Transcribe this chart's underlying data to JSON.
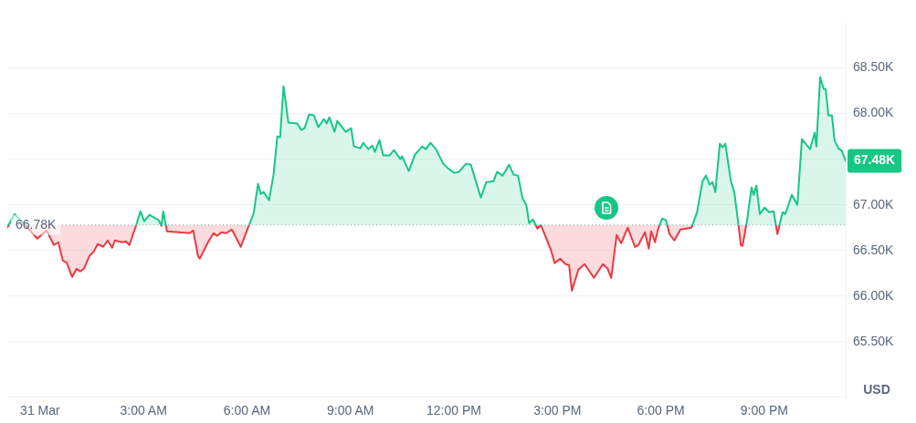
{
  "chart_data": {
    "type": "area",
    "ylabel": "USD",
    "x": [
      -0.95,
      -0.74,
      -0.53,
      -0.08,
      0.19,
      0.4,
      0.53,
      0.66,
      0.77,
      0.93,
      1.06,
      1.16,
      1.27,
      1.43,
      1.56,
      1.67,
      1.83,
      1.96,
      2.09,
      2.17,
      2.38,
      2.49,
      2.59,
      2.78,
      2.91,
      3.02,
      3.17,
      3.44,
      3.52,
      3.57,
      3.68,
      4.34,
      4.44,
      4.58,
      4.63,
      4.87,
      5.03,
      5.13,
      5.26,
      5.4,
      5.56,
      5.82,
      6.03,
      6.19,
      6.32,
      6.4,
      6.48,
      6.64,
      6.77,
      6.88,
      6.96,
      7.06,
      7.2,
      7.46,
      7.57,
      7.67,
      7.8,
      7.94,
      8.07,
      8.23,
      8.31,
      8.39,
      8.54,
      8.62,
      8.86,
      9.02,
      9.1,
      9.29,
      9.37,
      9.52,
      9.63,
      9.71,
      9.84,
      9.95,
      10.13,
      10.26,
      10.45,
      10.5,
      10.69,
      10.87,
      11.08,
      11.19,
      11.32,
      11.48,
      11.69,
      11.83,
      12.01,
      12.14,
      12.35,
      12.49,
      12.62,
      12.78,
      12.94,
      13.15,
      13.25,
      13.41,
      13.6,
      13.73,
      13.86,
      13.99,
      14.1,
      14.18,
      14.29,
      14.42,
      14.52,
      14.68,
      14.81,
      14.92,
      15.08,
      15.24,
      15.34,
      15.42,
      15.61,
      15.79,
      16.06,
      16.32,
      16.46,
      16.56,
      16.72,
      16.85,
      17.04,
      17.25,
      17.35,
      17.54,
      17.65,
      17.72,
      17.83,
      17.91,
      18.04,
      18.15,
      18.25,
      18.39,
      18.57,
      18.89,
      19.05,
      19.21,
      19.31,
      19.42,
      19.5,
      19.58,
      19.71,
      19.79,
      19.87,
      20.03,
      20.13,
      20.26,
      20.32,
      20.37,
      20.5,
      20.63,
      20.69,
      20.77,
      20.87,
      21.01,
      21.14,
      21.27,
      21.38,
      21.53,
      21.61,
      21.8,
      21.96,
      22.09,
      22.33,
      22.46,
      22.51,
      22.62,
      22.72,
      22.78,
      22.86,
      22.96,
      23.04,
      23.15,
      23.25,
      23.36
    ],
    "series": [
      {
        "values": [
          66.75,
          66.9,
          66.82,
          66.63,
          66.72,
          66.56,
          66.59,
          66.39,
          66.37,
          66.21,
          66.3,
          66.27,
          66.3,
          66.44,
          66.49,
          66.57,
          66.54,
          66.61,
          66.53,
          66.61,
          66.59,
          66.6,
          66.56,
          66.77,
          66.93,
          66.82,
          66.89,
          66.83,
          66.77,
          66.93,
          66.71,
          66.69,
          66.72,
          66.44,
          66.41,
          66.59,
          66.69,
          66.66,
          66.7,
          66.69,
          66.73,
          66.54,
          66.75,
          66.9,
          67.23,
          67.12,
          67.14,
          67.05,
          67.33,
          67.75,
          67.74,
          68.3,
          67.9,
          67.89,
          67.82,
          67.84,
          67.99,
          67.98,
          67.85,
          67.94,
          67.89,
          67.96,
          67.8,
          67.92,
          67.8,
          67.84,
          67.64,
          67.62,
          67.68,
          67.61,
          67.65,
          67.58,
          67.71,
          67.54,
          67.54,
          67.6,
          67.5,
          67.53,
          67.37,
          67.55,
          67.64,
          67.61,
          67.68,
          67.61,
          67.45,
          67.4,
          67.35,
          67.36,
          67.45,
          67.44,
          67.28,
          67.08,
          67.25,
          67.26,
          67.36,
          67.32,
          67.44,
          67.33,
          67.32,
          67.07,
          67.0,
          66.8,
          66.84,
          66.74,
          66.78,
          66.63,
          66.51,
          66.36,
          66.41,
          66.35,
          66.34,
          66.06,
          66.29,
          66.35,
          66.2,
          66.35,
          66.3,
          66.2,
          66.67,
          66.58,
          66.75,
          66.54,
          66.56,
          66.7,
          66.52,
          66.71,
          66.59,
          66.72,
          66.85,
          66.83,
          66.68,
          66.61,
          66.73,
          66.75,
          66.92,
          67.26,
          67.32,
          67.22,
          67.25,
          67.14,
          67.67,
          67.63,
          67.67,
          67.26,
          67.14,
          66.75,
          66.56,
          66.55,
          66.83,
          67.19,
          67.11,
          67.21,
          66.9,
          66.97,
          66.92,
          66.93,
          66.68,
          66.92,
          66.9,
          67.11,
          67.0,
          67.72,
          67.61,
          67.79,
          67.64,
          68.4,
          68.27,
          68.27,
          67.98,
          67.98,
          67.7,
          67.62,
          67.59,
          67.48
        ],
        "colors": [
          "#ea3943",
          "#16c784",
          "#16c784",
          "#ea3943",
          "#ea3943",
          "#ea3943",
          "#ea3943",
          "#ea3943",
          "#ea3943",
          "#ea3943",
          "#ea3943",
          "#ea3943",
          "#ea3943",
          "#ea3943",
          "#ea3943",
          "#ea3943",
          "#ea3943",
          "#ea3943",
          "#ea3943",
          "#ea3943",
          "#ea3943",
          "#ea3943",
          "#ea3943",
          "#ea3943",
          "#16c784",
          "#16c784",
          "#16c784",
          "#16c784",
          "#ea3943",
          "#16c784",
          "#ea3943",
          "#ea3943",
          "#ea3943",
          "#ea3943",
          "#ea3943",
          "#ea3943",
          "#ea3943",
          "#ea3943",
          "#ea3943",
          "#ea3943",
          "#ea3943",
          "#ea3943",
          "#ea3943",
          "#16c784",
          "#16c784",
          "#16c784",
          "#16c784",
          "#16c784",
          "#16c784",
          "#16c784",
          "#16c784",
          "#16c784",
          "#16c784",
          "#16c784",
          "#16c784",
          "#16c784",
          "#16c784",
          "#16c784",
          "#16c784",
          "#16c784",
          "#16c784",
          "#16c784",
          "#16c784",
          "#16c784",
          "#16c784",
          "#16c784",
          "#16c784",
          "#16c784",
          "#16c784",
          "#16c784",
          "#16c784",
          "#16c784",
          "#16c784",
          "#16c784",
          "#16c784",
          "#16c784",
          "#16c784",
          "#16c784",
          "#16c784",
          "#16c784",
          "#16c784",
          "#16c784",
          "#16c784",
          "#16c784",
          "#16c784",
          "#16c784",
          "#16c784",
          "#16c784",
          "#16c784",
          "#16c784",
          "#16c784",
          "#16c784",
          "#16c784",
          "#16c784",
          "#16c784",
          "#16c784",
          "#16c784",
          "#16c784",
          "#16c784",
          "#16c784",
          "#16c784",
          "#16c784",
          "#16c784",
          "#ea3943",
          "#16c784",
          "#ea3943",
          "#ea3943",
          "#ea3943",
          "#ea3943",
          "#ea3943",
          "#ea3943",
          "#ea3943",
          "#ea3943",
          "#ea3943",
          "#ea3943",
          "#ea3943",
          "#ea3943",
          "#ea3943",
          "#ea3943",
          "#ea3943",
          "#ea3943",
          "#ea3943",
          "#ea3943",
          "#ea3943",
          "#ea3943",
          "#ea3943",
          "#ea3943",
          "#ea3943",
          "#16c784",
          "#16c784",
          "#ea3943",
          "#ea3943",
          "#ea3943",
          "#ea3943",
          "#16c784",
          "#16c784",
          "#16c784",
          "#16c784",
          "#16c784",
          "#16c784",
          "#16c784",
          "#16c784",
          "#16c784",
          "#16c784",
          "#16c784",
          "#ea3943",
          "#ea3943",
          "#ea3943",
          "#16c784",
          "#16c784",
          "#16c784",
          "#16c784",
          "#16c784",
          "#16c784",
          "#16c784",
          "#16c784",
          "#ea3943",
          "#16c784",
          "#16c784",
          "#16c784",
          "#16c784",
          "#16c784",
          "#16c784",
          "#16c784",
          "#16c784",
          "#16c784",
          "#16c784",
          "#16c784",
          "#16c784",
          "#16c784",
          "#16c784",
          "#16c784",
          "#16c784",
          "#16c784"
        ]
      }
    ],
    "xlim": [
      -0.95,
      23.36
    ],
    "xticks": [
      {
        "value": 0,
        "label": "31 Mar"
      },
      {
        "value": 3,
        "label": "3:00 AM"
      },
      {
        "value": 6,
        "label": "6:00 AM"
      },
      {
        "value": 9,
        "label": "9:00 AM"
      },
      {
        "value": 12,
        "label": "12:00 PM"
      },
      {
        "value": 15,
        "label": "3:00 PM"
      },
      {
        "value": 18,
        "label": "6:00 PM"
      },
      {
        "value": 21,
        "label": "9:00 PM"
      }
    ],
    "ylim": [
      64.9,
      69.0
    ],
    "yticks": [
      {
        "value": 65.5,
        "label": "65.50K"
      },
      {
        "value": 66,
        "label": "66.00K"
      },
      {
        "value": 66.5,
        "label": "66.50K"
      },
      {
        "value": 67,
        "label": "67.00K"
      },
      {
        "value": 67.5,
        "label": null
      },
      {
        "value": 68,
        "label": "68.00K"
      },
      {
        "value": 68.5,
        "label": "68.50K"
      }
    ],
    "ref_lines": [
      {
        "axis": "y",
        "value": 66.78,
        "label": "66.78K",
        "color": "#9aa0aa",
        "line_style": "dotted"
      }
    ],
    "annotations": [
      {
        "text": "67.48K",
        "x": 23.36,
        "y": 67.48
      }
    ],
    "grid": "y",
    "legend": false,
    "marker": "none",
    "line_style": "solid"
  }
}
